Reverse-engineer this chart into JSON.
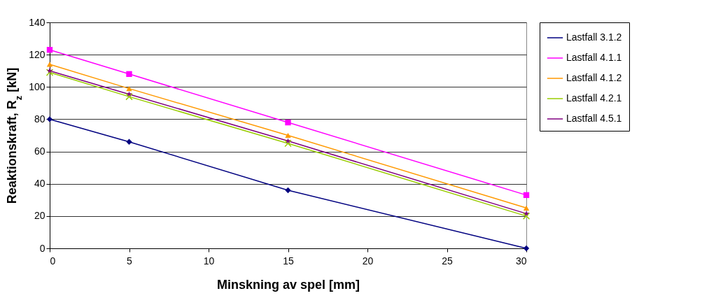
{
  "chart_data": {
    "type": "line",
    "xlabel": "Minskning av spel [mm]",
    "ylabel": "Reaktionskraft, R$_{z}$ [kN]",
    "x": [
      0,
      5,
      15,
      30
    ],
    "series": [
      {
        "name": "Lastfall 3.1.2",
        "color": "#000080",
        "marker": "diamond",
        "values": [
          80,
          66,
          36,
          0
        ]
      },
      {
        "name": "Lastfall 4.1.1",
        "color": "#ff00ff",
        "marker": "square",
        "values": [
          123,
          108,
          78,
          33
        ]
      },
      {
        "name": "Lastfall 4.1.2",
        "color": "#ff9900",
        "marker": "triangle",
        "values": [
          114,
          99,
          70,
          25
        ]
      },
      {
        "name": "Lastfall 4.2.1",
        "color": "#99cc00",
        "marker": "cross",
        "values": [
          109,
          94,
          65,
          20
        ]
      },
      {
        "name": "Lastfall 4.5.1",
        "color": "#800080",
        "marker": "star",
        "values": [
          110,
          95.5,
          66.5,
          21.5
        ]
      }
    ],
    "xlim": [
      0,
      30
    ],
    "xticks": [
      0,
      5,
      10,
      15,
      20,
      25,
      30
    ],
    "ylim": [
      0,
      140
    ],
    "yticks": [
      0,
      20,
      40,
      60,
      80,
      100,
      120,
      140
    ],
    "grid": "y",
    "legend": "right",
    "line_style": "solid"
  }
}
